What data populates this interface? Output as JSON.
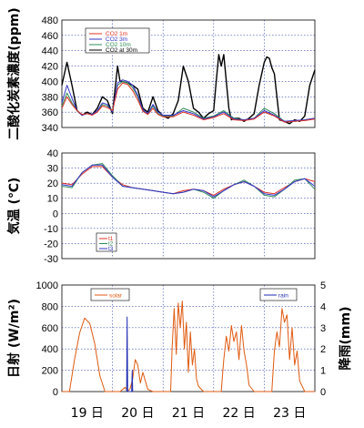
{
  "chart_data": [
    {
      "type": "line",
      "ylabel": "二酸化炭素濃度(ppm)",
      "ylim": [
        340,
        480
      ],
      "yticks": [
        "340",
        "360",
        "380",
        "400",
        "420",
        "440",
        "460",
        "480"
      ],
      "xlim": [
        0,
        5
      ],
      "grid": true,
      "legend": {
        "position": "top-left",
        "labels": [
          "CO2 1m",
          "CO2 3m",
          "CO2 10m",
          "CO2 at 30m"
        ]
      },
      "series": [
        {
          "name": "CO2 at 30m",
          "color": "#000000",
          "x": [
            0,
            0.1,
            0.2,
            0.3,
            0.4,
            0.5,
            0.6,
            0.7,
            0.8,
            0.9,
            1.0,
            1.05,
            1.1,
            1.15,
            1.2,
            1.3,
            1.4,
            1.5,
            1.6,
            1.7,
            1.8,
            1.9,
            2.0,
            2.1,
            2.2,
            2.3,
            2.4,
            2.5,
            2.6,
            2.7,
            2.8,
            2.9,
            3.0,
            3.05,
            3.1,
            3.15,
            3.2,
            3.3,
            3.35,
            3.4,
            3.5,
            3.6,
            3.7,
            3.8,
            3.9,
            4.0,
            4.05,
            4.1,
            4.15,
            4.2,
            4.3,
            4.4,
            4.5,
            4.6,
            4.7,
            4.8,
            4.9,
            5.0
          ],
          "y": [
            395,
            425,
            395,
            362,
            356,
            360,
            357,
            365,
            380,
            375,
            358,
            390,
            420,
            400,
            400,
            398,
            395,
            390,
            365,
            360,
            380,
            362,
            355,
            352,
            358,
            375,
            420,
            400,
            365,
            360,
            352,
            358,
            362,
            400,
            435,
            420,
            435,
            365,
            350,
            352,
            352,
            348,
            352,
            358,
            395,
            425,
            432,
            430,
            418,
            410,
            350,
            348,
            345,
            350,
            348,
            355,
            395,
            415
          ]
        },
        {
          "name": "CO2 10m",
          "color": "#2e8b57",
          "x": [
            0,
            0.1,
            0.2,
            0.3,
            0.4,
            0.5,
            0.6,
            0.7,
            0.8,
            0.9,
            1.0,
            1.1,
            1.2,
            1.3,
            1.4,
            1.5,
            1.6,
            1.7,
            1.8,
            1.9,
            2.0,
            2.2,
            2.4,
            2.6,
            2.8,
            3.0,
            3.2,
            3.4,
            3.6,
            3.8,
            4.0,
            4.2,
            4.4,
            4.6,
            4.8,
            5.0
          ],
          "y": [
            368,
            385,
            372,
            362,
            357,
            358,
            357,
            360,
            370,
            368,
            362,
            395,
            400,
            398,
            392,
            380,
            362,
            358,
            368,
            358,
            355,
            355,
            365,
            360,
            352,
            355,
            362,
            352,
            350,
            352,
            365,
            358,
            348,
            348,
            350,
            352
          ]
        },
        {
          "name": "CO2 3m",
          "color": "#3333cc",
          "x": [
            0,
            0.1,
            0.2,
            0.3,
            0.4,
            0.5,
            0.6,
            0.7,
            0.8,
            0.9,
            1.0,
            1.1,
            1.2,
            1.3,
            1.4,
            1.5,
            1.6,
            1.7,
            1.8,
            1.9,
            2.0,
            2.2,
            2.4,
            2.6,
            2.8,
            3.0,
            3.2,
            3.4,
            3.6,
            3.8,
            4.0,
            4.2,
            4.4,
            4.6,
            4.8,
            5.0
          ],
          "y": [
            372,
            395,
            378,
            362,
            356,
            358,
            357,
            362,
            372,
            370,
            360,
            398,
            402,
            400,
            395,
            382,
            363,
            358,
            370,
            360,
            356,
            356,
            362,
            358,
            351,
            354,
            360,
            351,
            350,
            352,
            362,
            356,
            348,
            349,
            350,
            352
          ]
        },
        {
          "name": "CO2 1m",
          "color": "#e03020",
          "x": [
            0,
            0.1,
            0.2,
            0.3,
            0.4,
            0.5,
            0.6,
            0.7,
            0.8,
            0.9,
            1.0,
            1.1,
            1.2,
            1.3,
            1.4,
            1.5,
            1.6,
            1.7,
            1.8,
            1.9,
            2.0,
            2.2,
            2.4,
            2.6,
            2.8,
            3.0,
            3.2,
            3.4,
            3.6,
            3.8,
            4.0,
            4.2,
            4.4,
            4.6,
            4.8,
            5.0
          ],
          "y": [
            365,
            380,
            370,
            362,
            357,
            358,
            356,
            360,
            368,
            366,
            362,
            390,
            398,
            396,
            388,
            376,
            361,
            357,
            365,
            357,
            354,
            354,
            360,
            356,
            350,
            353,
            358,
            350,
            349,
            351,
            360,
            355,
            347,
            348,
            349,
            351
          ]
        }
      ]
    },
    {
      "type": "line",
      "ylabel": "気温 (℃)",
      "ylim": [
        -30,
        40
      ],
      "yticks": [
        "-30",
        "-20",
        "-10",
        "0",
        "10",
        "20",
        "30",
        "40"
      ],
      "xlim": [
        0,
        5
      ],
      "grid": true,
      "legend": {
        "position": "bottom-left",
        "labels": [
          "t1",
          "t2",
          "t3"
        ]
      },
      "series": [
        {
          "name": "t1",
          "color": "#e03020",
          "x": [
            0,
            0.2,
            0.4,
            0.6,
            0.8,
            1.0,
            1.2,
            1.4,
            1.6,
            1.8,
            2.0,
            2.2,
            2.4,
            2.6,
            2.8,
            3.0,
            3.2,
            3.4,
            3.6,
            3.8,
            4.0,
            4.2,
            4.4,
            4.6,
            4.8,
            5.0
          ],
          "y": [
            20,
            19,
            26,
            31,
            31,
            24,
            19,
            17,
            16,
            15,
            14,
            13,
            15,
            16,
            15,
            12,
            16,
            19,
            21,
            18,
            14,
            13,
            17,
            21,
            23,
            21
          ]
        },
        {
          "name": "t2",
          "color": "#2e8b57",
          "x": [
            0,
            0.2,
            0.4,
            0.6,
            0.8,
            1.0,
            1.2,
            1.4,
            1.6,
            1.8,
            2.0,
            2.2,
            2.4,
            2.6,
            2.8,
            3.0,
            3.2,
            3.4,
            3.6,
            3.8,
            4.0,
            4.2,
            4.4,
            4.6,
            4.8,
            5.0
          ],
          "y": [
            18,
            17,
            27,
            32,
            33,
            25,
            18,
            17,
            16,
            15,
            14,
            13,
            14,
            16,
            14,
            10,
            15,
            19,
            22,
            18,
            12,
            11,
            16,
            22,
            23,
            16
          ]
        },
        {
          "name": "t3",
          "color": "#3333cc",
          "x": [
            0,
            0.2,
            0.4,
            0.6,
            0.8,
            1.0,
            1.2,
            1.4,
            1.6,
            1.8,
            2.0,
            2.2,
            2.4,
            2.6,
            2.8,
            3.0,
            3.2,
            3.4,
            3.6,
            3.8,
            4.0,
            4.2,
            4.4,
            4.6,
            4.8,
            5.0
          ],
          "y": [
            19,
            18,
            27,
            32,
            32,
            24,
            18,
            17,
            16,
            15,
            14,
            13,
            14,
            16,
            15,
            11,
            15,
            19,
            21,
            18,
            13,
            12,
            16,
            21,
            23,
            18
          ]
        }
      ]
    },
    {
      "type": "line",
      "ylabel": "日射 (W/m²)",
      "ylabel_right": "降雨(mm)",
      "ylim": [
        0,
        1000
      ],
      "yticks": [
        "0",
        "200",
        "400",
        "600",
        "800",
        "1000"
      ],
      "ylim_right": [
        0,
        5
      ],
      "yticks_right": [
        "0",
        "1",
        "2",
        "3",
        "4",
        "5"
      ],
      "xlim": [
        0,
        5
      ],
      "grid": true,
      "xticks": [
        "19 日",
        "20 日",
        "21 日",
        "22 日",
        "23 日"
      ],
      "legend": {
        "labels": [
          "solar",
          "rain"
        ]
      },
      "series": [
        {
          "name": "solar",
          "color": "#e05a10",
          "x": [
            0,
            0.15,
            0.25,
            0.35,
            0.45,
            0.55,
            0.65,
            0.75,
            0.85,
            1.0,
            1.15,
            1.25,
            1.3,
            1.35,
            1.4,
            1.45,
            1.5,
            1.55,
            1.6,
            1.65,
            1.7,
            1.8,
            2.0,
            2.15,
            2.18,
            2.22,
            2.26,
            2.3,
            2.34,
            2.38,
            2.42,
            2.46,
            2.5,
            2.54,
            2.58,
            2.62,
            2.66,
            2.7,
            2.8,
            3.0,
            3.15,
            3.2,
            3.25,
            3.3,
            3.35,
            3.4,
            3.45,
            3.5,
            3.55,
            3.6,
            3.65,
            3.7,
            3.8,
            4.0,
            4.15,
            4.2,
            4.25,
            4.3,
            4.35,
            4.4,
            4.45,
            4.5,
            4.55,
            4.6,
            4.65,
            4.7,
            4.8,
            5.0
          ],
          "y": [
            0,
            0,
            300,
            550,
            690,
            640,
            450,
            150,
            0,
            0,
            0,
            40,
            0,
            30,
            120,
            300,
            250,
            80,
            180,
            100,
            20,
            0,
            0,
            0,
            420,
            780,
            350,
            830,
            600,
            850,
            400,
            650,
            180,
            560,
            250,
            400,
            120,
            50,
            0,
            0,
            0,
            300,
            520,
            380,
            620,
            470,
            560,
            300,
            620,
            380,
            250,
            60,
            0,
            0,
            0,
            380,
            560,
            420,
            780,
            650,
            720,
            300,
            600,
            250,
            380,
            100,
            0,
            0
          ]
        },
        {
          "name": "rain",
          "color": "#1f2db0",
          "x": [
            1.28,
            1.29,
            1.3,
            1.31,
            1.38,
            1.39,
            1.4
          ],
          "y": [
            0,
            3.5,
            0,
            0,
            0,
            1.0,
            0
          ]
        }
      ]
    }
  ]
}
